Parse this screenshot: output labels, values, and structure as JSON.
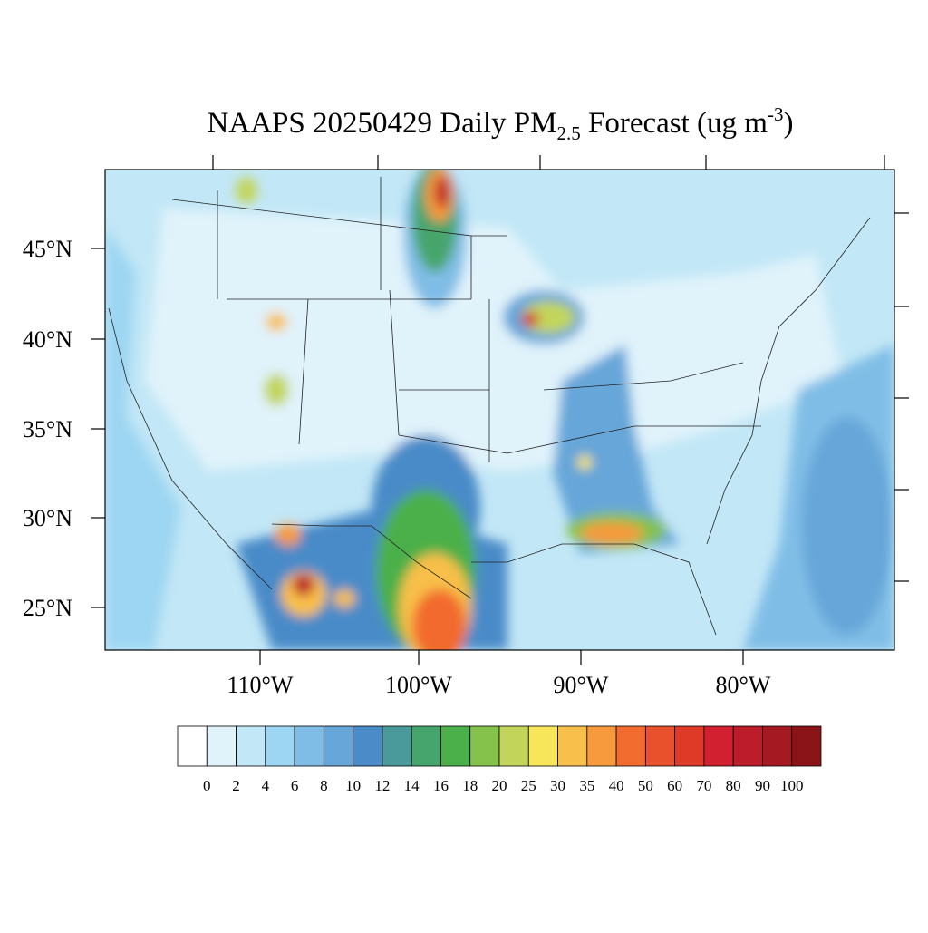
{
  "title": {
    "main": "NAAPS 20250429 Daily PM",
    "subscript": "2.5",
    "after": " Forecast (ug m",
    "superscript": "-3",
    "end": ")"
  },
  "lat_labels": [
    "45°N",
    "40°N",
    "35°N",
    "30°N",
    "25°N"
  ],
  "lon_labels": [
    "110°W",
    "100°W",
    "90°W",
    "80°W"
  ],
  "colorbar": {
    "levels": [
      0,
      2,
      4,
      6,
      8,
      10,
      12,
      14,
      16,
      18,
      20,
      25,
      30,
      35,
      40,
      50,
      60,
      70,
      80,
      90,
      100
    ],
    "colors": [
      "#ffffff",
      "#e0f3fb",
      "#c2e7f6",
      "#9dd6f2",
      "#80bde6",
      "#66a6d9",
      "#4a8bc8",
      "#4a9a9a",
      "#46a56c",
      "#4cb04a",
      "#84c24b",
      "#c2d55a",
      "#f7e65a",
      "#f8bf4a",
      "#f79a3e",
      "#f26b2f",
      "#e9502c",
      "#df3a27",
      "#d22030",
      "#bd1c2a",
      "#a51a22",
      "#8b1419"
    ]
  }
}
